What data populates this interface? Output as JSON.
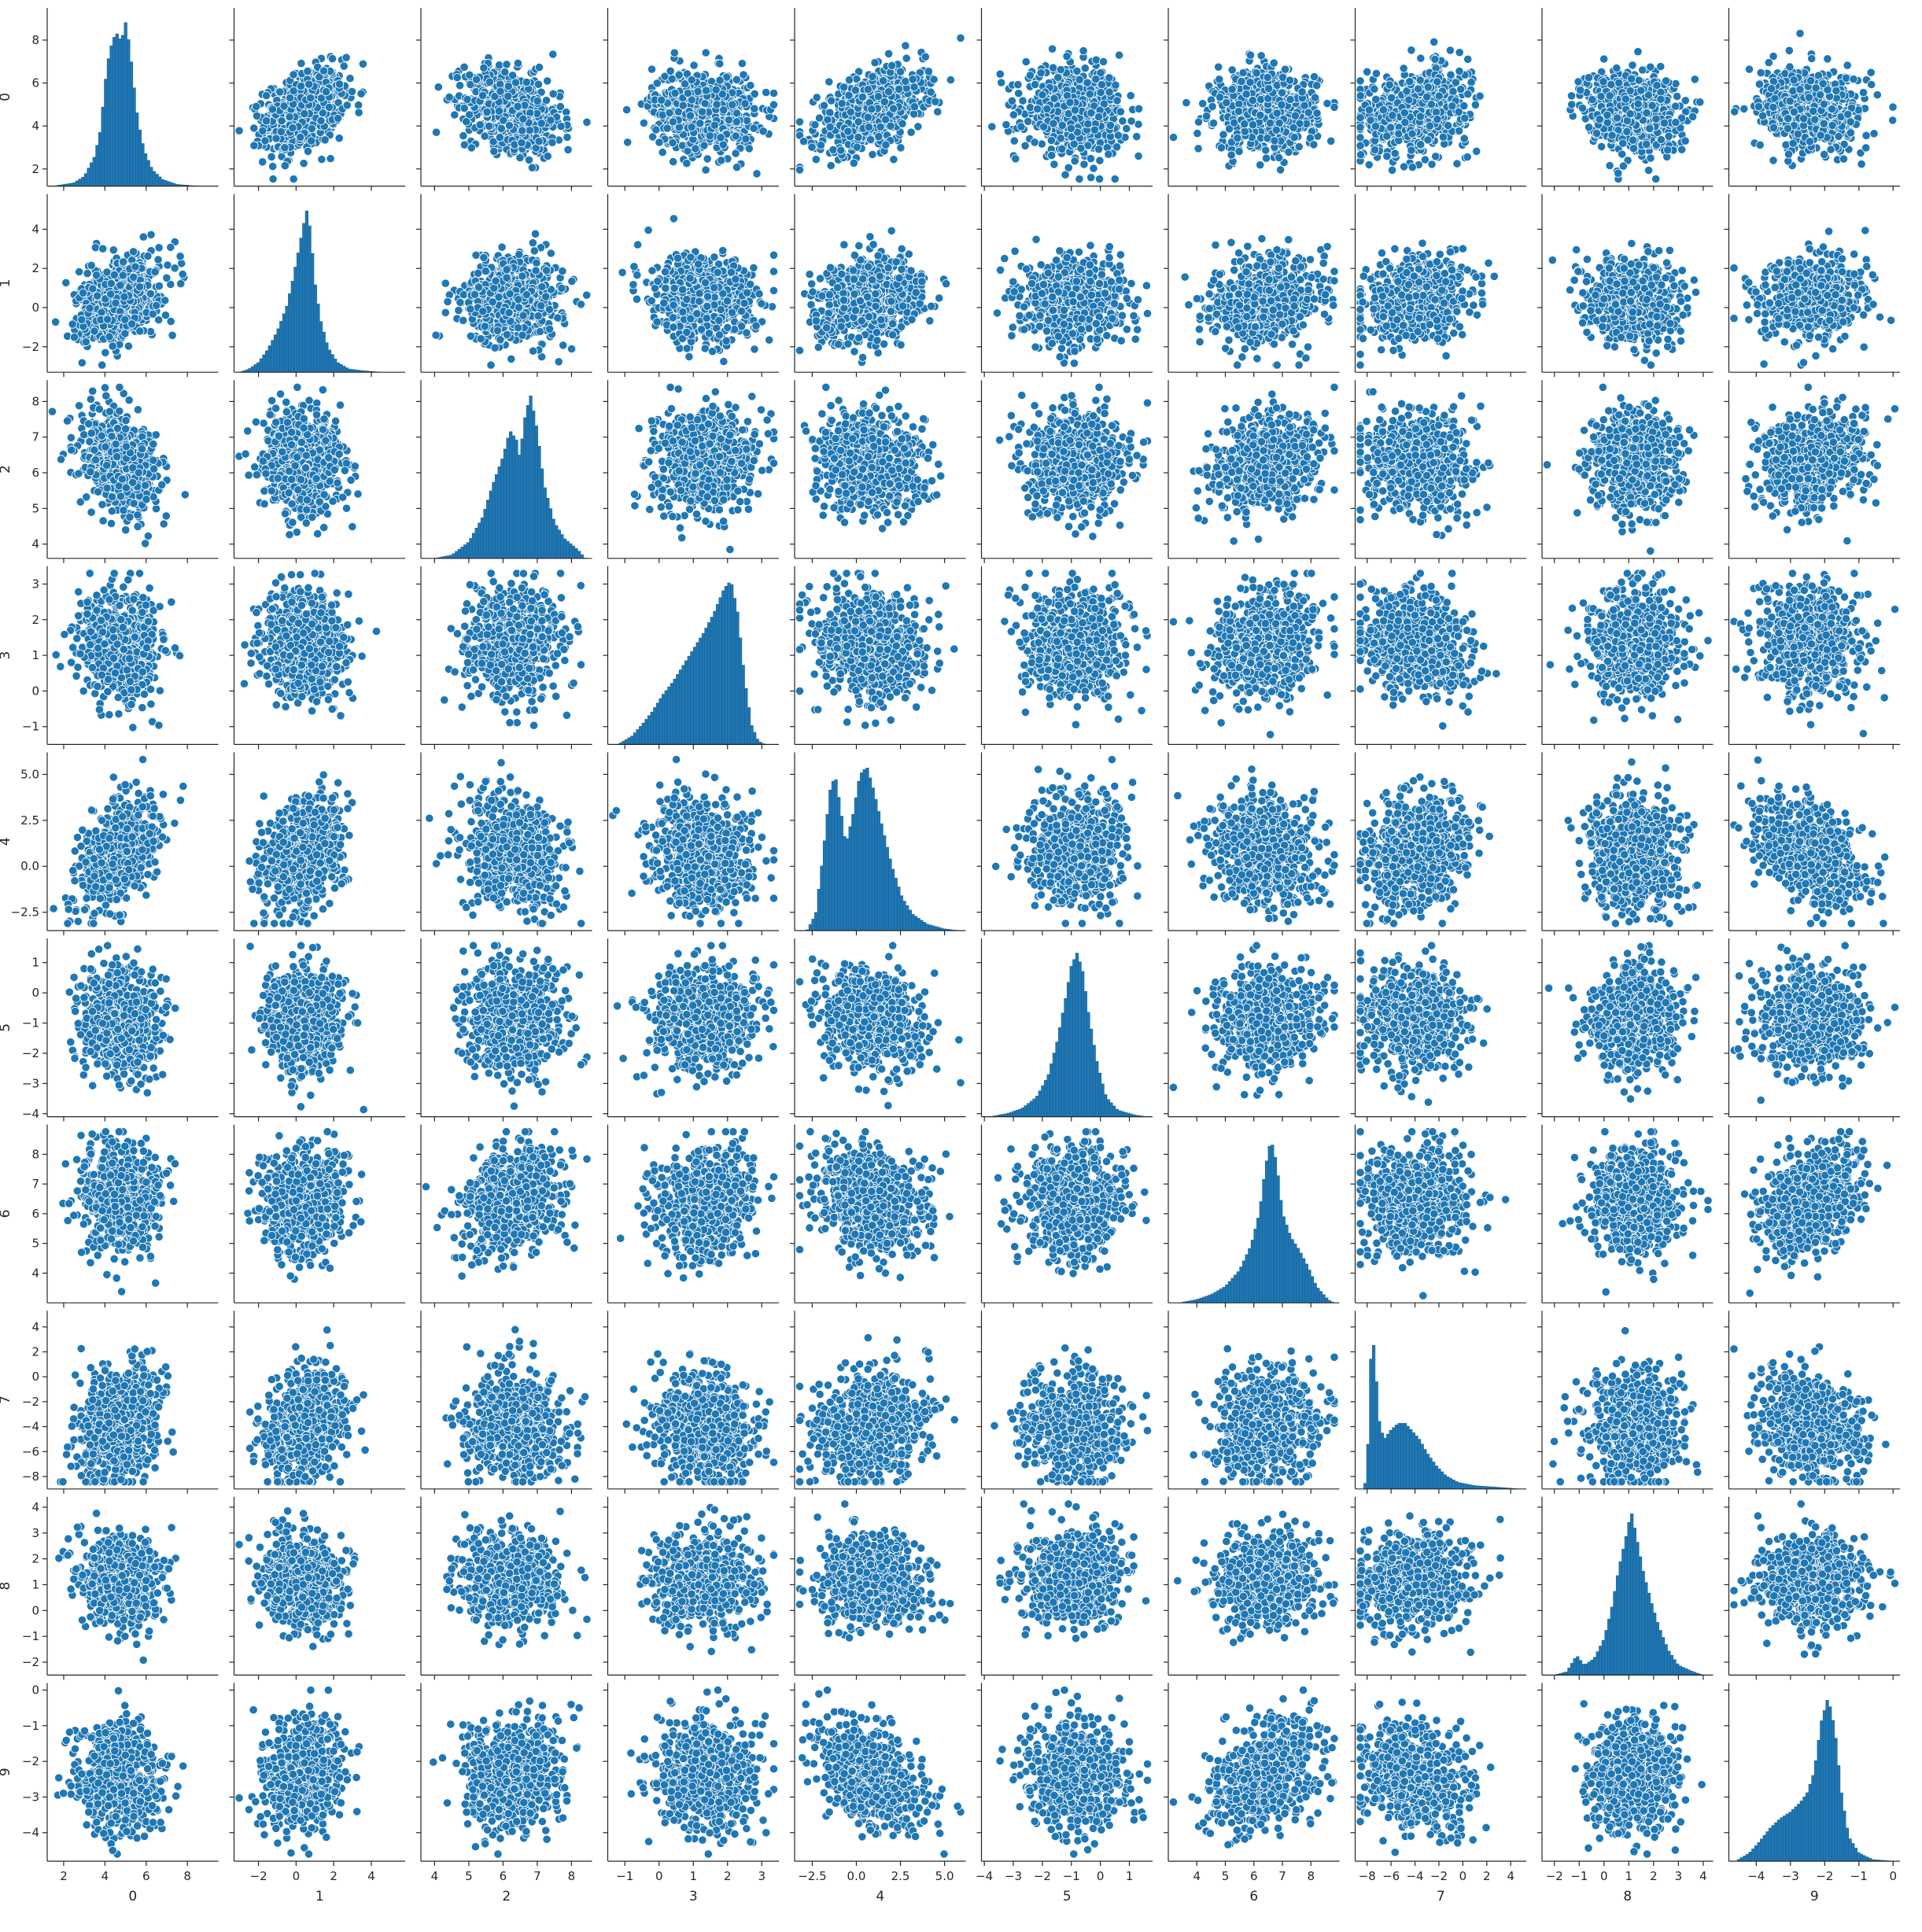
{
  "colors": {
    "marker_fill": "#1f77b4",
    "marker_edge": "#ffffff",
    "hist_fill": "#1f77b4",
    "hist_edge": "#1a5f8f",
    "axis": "#262626"
  },
  "chart_data": {
    "type": "scatter",
    "subtype": "pairplot",
    "title": "",
    "variables": [
      {
        "name": "0",
        "lim": [
          1.2,
          9.5
        ],
        "ticks": [
          {
            "v": 2,
            "label": "2"
          },
          {
            "v": 4,
            "label": "4"
          },
          {
            "v": 6,
            "label": "6"
          },
          {
            "v": 8,
            "label": "8"
          }
        ],
        "mean": 4.7,
        "sd": 0.95
      },
      {
        "name": "1",
        "lim": [
          -3.3,
          5.8
        ],
        "ticks": [
          {
            "v": -2,
            "label": "−2"
          },
          {
            "v": 0,
            "label": "0"
          },
          {
            "v": 2,
            "label": "2"
          },
          {
            "v": 4,
            "label": "4"
          }
        ],
        "mean": 0.4,
        "sd": 1.05
      },
      {
        "name": "2",
        "lim": [
          3.6,
          8.6
        ],
        "ticks": [
          {
            "v": 4,
            "label": "4"
          },
          {
            "v": 5,
            "label": "5"
          },
          {
            "v": 6,
            "label": "6"
          },
          {
            "v": 7,
            "label": "7"
          },
          {
            "v": 8,
            "label": "8"
          }
        ],
        "mean": 6.3,
        "sd": 0.7
      },
      {
        "name": "3",
        "lim": [
          -1.5,
          3.5
        ],
        "ticks": [
          {
            "v": -1,
            "label": "−1"
          },
          {
            "v": 0,
            "label": "0"
          },
          {
            "v": 1,
            "label": "1"
          },
          {
            "v": 2,
            "label": "2"
          },
          {
            "v": 3,
            "label": "3"
          }
        ],
        "mean": 1.3,
        "sd": 0.75
      },
      {
        "name": "4",
        "lim": [
          -3.5,
          6.2
        ],
        "ticks": [
          {
            "v": -2.5,
            "label": "−2.5"
          },
          {
            "v": 0.0,
            "label": "0.0"
          },
          {
            "v": 2.5,
            "label": "2.5"
          },
          {
            "v": 5.0,
            "label": "5.0"
          }
        ],
        "mean": 0.8,
        "sd": 1.5
      },
      {
        "name": "5",
        "lim": [
          -4.1,
          1.8
        ],
        "ticks": [
          {
            "v": -4,
            "label": "−4"
          },
          {
            "v": -3,
            "label": "−3"
          },
          {
            "v": -2,
            "label": "−2"
          },
          {
            "v": -1,
            "label": "−1"
          },
          {
            "v": 0,
            "label": "0"
          },
          {
            "v": 1,
            "label": "1"
          }
        ],
        "mean": -0.9,
        "sd": 0.85
      },
      {
        "name": "6",
        "lim": [
          3.0,
          9.0
        ],
        "ticks": [
          {
            "v": 4,
            "label": "4"
          },
          {
            "v": 5,
            "label": "5"
          },
          {
            "v": 6,
            "label": "6"
          },
          {
            "v": 7,
            "label": "7"
          },
          {
            "v": 8,
            "label": "8"
          }
        ],
        "mean": 6.4,
        "sd": 0.9
      },
      {
        "name": "7",
        "lim": [
          -9.0,
          5.3
        ],
        "ticks": [
          {
            "v": -8,
            "label": "−8"
          },
          {
            "v": -6,
            "label": "−6"
          },
          {
            "v": -4,
            "label": "−4"
          },
          {
            "v": -2,
            "label": "−2"
          },
          {
            "v": 0,
            "label": "0"
          },
          {
            "v": 2,
            "label": "2"
          },
          {
            "v": 4,
            "label": "4"
          }
        ],
        "mean": -4.0,
        "sd": 2.2
      },
      {
        "name": "8",
        "lim": [
          -2.5,
          4.4
        ],
        "ticks": [
          {
            "v": -2,
            "label": "−2"
          },
          {
            "v": -1,
            "label": "−1"
          },
          {
            "v": 0,
            "label": "0"
          },
          {
            "v": 1,
            "label": "1"
          },
          {
            "v": 2,
            "label": "2"
          },
          {
            "v": 3,
            "label": "3"
          },
          {
            "v": 4,
            "label": "4"
          }
        ],
        "mean": 1.2,
        "sd": 0.9
      },
      {
        "name": "9",
        "lim": [
          -4.8,
          0.2
        ],
        "ticks": [
          {
            "v": -4,
            "label": "−4"
          },
          {
            "v": -3,
            "label": "−3"
          },
          {
            "v": -2,
            "label": "−2"
          },
          {
            "v": -1,
            "label": "−1"
          },
          {
            "v": 0,
            "label": "0"
          }
        ],
        "mean": -2.4,
        "sd": 0.75
      }
    ],
    "extra_tick_labels": {
      "0": [
        {
          "v": 2,
          "label": "2"
        },
        {
          "v": 4,
          "label": "4"
        },
        {
          "v": 6,
          "label": "6"
        },
        {
          "v": 8,
          "label": "8"
        }
      ]
    },
    "correlations": [
      [
        1,
        0.35,
        -0.3,
        -0.1,
        0.45,
        -0.05,
        -0.05,
        0.2,
        -0.1,
        -0.1
      ],
      [
        0.35,
        1,
        0.05,
        -0.1,
        0.2,
        0.0,
        0.1,
        0.25,
        -0.15,
        0.15
      ],
      [
        -0.3,
        0.05,
        1,
        0.1,
        -0.15,
        0.0,
        0.25,
        -0.1,
        -0.05,
        0.1
      ],
      [
        -0.1,
        -0.1,
        0.1,
        1,
        -0.1,
        0.0,
        0.2,
        -0.1,
        -0.05,
        -0.05
      ],
      [
        0.45,
        0.2,
        -0.15,
        -0.1,
        1,
        -0.05,
        -0.2,
        0.2,
        -0.05,
        -0.45
      ],
      [
        -0.05,
        0.0,
        0.0,
        0.0,
        -0.05,
        1,
        0.05,
        -0.05,
        0.05,
        0.0
      ],
      [
        -0.05,
        0.1,
        0.25,
        0.2,
        -0.2,
        0.05,
        1,
        0.05,
        0.05,
        0.35
      ],
      [
        0.2,
        0.25,
        -0.1,
        -0.1,
        0.2,
        -0.05,
        0.05,
        1,
        0.05,
        -0.2
      ],
      [
        -0.1,
        -0.15,
        -0.05,
        -0.05,
        -0.05,
        0.05,
        0.05,
        0.05,
        1,
        0.05
      ],
      [
        -0.1,
        0.15,
        0.1,
        -0.05,
        -0.45,
        0.0,
        0.35,
        -0.2,
        0.05,
        1
      ]
    ],
    "diagonal_histograms": [
      {
        "variable": "0",
        "bins": [
          [
            1.5,
            0.0
          ],
          [
            2.0,
            0.01
          ],
          [
            2.5,
            0.02
          ],
          [
            3.0,
            0.06
          ],
          [
            3.5,
            0.18
          ],
          [
            3.8,
            0.35
          ],
          [
            4.0,
            0.62
          ],
          [
            4.2,
            0.8
          ],
          [
            4.4,
            0.9
          ],
          [
            4.6,
            0.93
          ],
          [
            4.8,
            0.88
          ],
          [
            5.0,
            1.0
          ],
          [
            5.2,
            0.85
          ],
          [
            5.4,
            0.62
          ],
          [
            5.6,
            0.4
          ],
          [
            5.9,
            0.22
          ],
          [
            6.3,
            0.1
          ],
          [
            6.8,
            0.04
          ],
          [
            7.5,
            0.01
          ],
          [
            8.5,
            0.0
          ]
        ]
      },
      {
        "variable": "1",
        "bins": [
          [
            -3.0,
            0.0
          ],
          [
            -2.5,
            0.02
          ],
          [
            -2.0,
            0.06
          ],
          [
            -1.5,
            0.14
          ],
          [
            -1.0,
            0.25
          ],
          [
            -0.5,
            0.4
          ],
          [
            -0.2,
            0.55
          ],
          [
            0.1,
            0.72
          ],
          [
            0.4,
            0.9
          ],
          [
            0.6,
            1.0
          ],
          [
            0.8,
            0.82
          ],
          [
            1.0,
            0.55
          ],
          [
            1.3,
            0.32
          ],
          [
            1.7,
            0.15
          ],
          [
            2.2,
            0.06
          ],
          [
            2.8,
            0.02
          ],
          [
            3.5,
            0.01
          ],
          [
            4.5,
            0.0
          ]
        ]
      },
      {
        "variable": "2",
        "bins": [
          [
            4.0,
            0.0
          ],
          [
            4.5,
            0.02
          ],
          [
            5.0,
            0.1
          ],
          [
            5.4,
            0.25
          ],
          [
            5.7,
            0.45
          ],
          [
            6.0,
            0.62
          ],
          [
            6.2,
            0.78
          ],
          [
            6.4,
            0.72
          ],
          [
            6.5,
            0.6
          ],
          [
            6.6,
            0.82
          ],
          [
            6.8,
            1.0
          ],
          [
            7.0,
            0.78
          ],
          [
            7.2,
            0.45
          ],
          [
            7.5,
            0.22
          ],
          [
            7.8,
            0.12
          ],
          [
            8.2,
            0.05
          ],
          [
            8.4,
            0.0
          ]
        ]
      },
      {
        "variable": "3",
        "bins": [
          [
            -1.2,
            0.0
          ],
          [
            -0.8,
            0.05
          ],
          [
            -0.5,
            0.12
          ],
          [
            -0.2,
            0.2
          ],
          [
            0.1,
            0.3
          ],
          [
            0.4,
            0.38
          ],
          [
            0.7,
            0.48
          ],
          [
            1.0,
            0.58
          ],
          [
            1.3,
            0.68
          ],
          [
            1.6,
            0.8
          ],
          [
            1.9,
            0.95
          ],
          [
            2.1,
            1.0
          ],
          [
            2.3,
            0.8
          ],
          [
            2.5,
            0.4
          ],
          [
            2.7,
            0.12
          ],
          [
            2.9,
            0.02
          ],
          [
            3.1,
            0.0
          ]
        ]
      },
      {
        "variable": "4",
        "bins": [
          [
            -2.8,
            0.0
          ],
          [
            -2.3,
            0.1
          ],
          [
            -1.9,
            0.45
          ],
          [
            -1.5,
            0.85
          ],
          [
            -1.2,
            0.95
          ],
          [
            -0.9,
            0.75
          ],
          [
            -0.6,
            0.52
          ],
          [
            -0.2,
            0.7
          ],
          [
            0.2,
            0.95
          ],
          [
            0.6,
            1.0
          ],
          [
            1.0,
            0.85
          ],
          [
            1.5,
            0.62
          ],
          [
            2.0,
            0.4
          ],
          [
            2.6,
            0.2
          ],
          [
            3.2,
            0.1
          ],
          [
            4.0,
            0.04
          ],
          [
            5.0,
            0.01
          ],
          [
            5.8,
            0.0
          ]
        ]
      },
      {
        "variable": "5",
        "bins": [
          [
            -3.8,
            0.0
          ],
          [
            -3.2,
            0.02
          ],
          [
            -2.7,
            0.05
          ],
          [
            -2.2,
            0.12
          ],
          [
            -1.8,
            0.25
          ],
          [
            -1.5,
            0.45
          ],
          [
            -1.2,
            0.72
          ],
          [
            -1.0,
            0.92
          ],
          [
            -0.8,
            1.0
          ],
          [
            -0.6,
            0.88
          ],
          [
            -0.4,
            0.62
          ],
          [
            -0.1,
            0.32
          ],
          [
            0.2,
            0.12
          ],
          [
            0.6,
            0.04
          ],
          [
            1.2,
            0.01
          ],
          [
            1.6,
            0.0
          ]
        ]
      },
      {
        "variable": "6",
        "bins": [
          [
            3.4,
            0.0
          ],
          [
            4.0,
            0.02
          ],
          [
            4.5,
            0.05
          ],
          [
            5.0,
            0.1
          ],
          [
            5.5,
            0.2
          ],
          [
            5.9,
            0.35
          ],
          [
            6.2,
            0.55
          ],
          [
            6.4,
            0.82
          ],
          [
            6.6,
            1.0
          ],
          [
            6.8,
            0.85
          ],
          [
            7.0,
            0.55
          ],
          [
            7.3,
            0.4
          ],
          [
            7.6,
            0.32
          ],
          [
            7.9,
            0.22
          ],
          [
            8.2,
            0.1
          ],
          [
            8.6,
            0.02
          ],
          [
            8.8,
            0.0
          ]
        ]
      },
      {
        "variable": "7",
        "bins": [
          [
            -8.2,
            0.0
          ],
          [
            -7.9,
            0.3
          ],
          [
            -7.6,
            1.0
          ],
          [
            -7.3,
            0.75
          ],
          [
            -7.0,
            0.42
          ],
          [
            -6.6,
            0.3
          ],
          [
            -6.0,
            0.36
          ],
          [
            -5.4,
            0.4
          ],
          [
            -4.8,
            0.4
          ],
          [
            -4.2,
            0.35
          ],
          [
            -3.6,
            0.3
          ],
          [
            -3.0,
            0.22
          ],
          [
            -2.2,
            0.14
          ],
          [
            -1.4,
            0.08
          ],
          [
            -0.4,
            0.04
          ],
          [
            1.0,
            0.02
          ],
          [
            3.0,
            0.01
          ],
          [
            4.8,
            0.0
          ]
        ]
      },
      {
        "variable": "8",
        "bins": [
          [
            -2.0,
            0.0
          ],
          [
            -1.5,
            0.02
          ],
          [
            -1.1,
            0.12
          ],
          [
            -0.8,
            0.06
          ],
          [
            -0.4,
            0.1
          ],
          [
            0.0,
            0.22
          ],
          [
            0.3,
            0.4
          ],
          [
            0.6,
            0.65
          ],
          [
            0.9,
            0.85
          ],
          [
            1.1,
            1.0
          ],
          [
            1.3,
            0.85
          ],
          [
            1.6,
            0.62
          ],
          [
            1.9,
            0.45
          ],
          [
            2.2,
            0.3
          ],
          [
            2.6,
            0.15
          ],
          [
            3.0,
            0.06
          ],
          [
            3.6,
            0.02
          ],
          [
            4.0,
            0.0
          ]
        ]
      },
      {
        "variable": "9",
        "bins": [
          [
            -4.6,
            0.0
          ],
          [
            -4.2,
            0.05
          ],
          [
            -3.9,
            0.12
          ],
          [
            -3.6,
            0.2
          ],
          [
            -3.3,
            0.26
          ],
          [
            -3.0,
            0.3
          ],
          [
            -2.7,
            0.36
          ],
          [
            -2.5,
            0.42
          ],
          [
            -2.3,
            0.55
          ],
          [
            -2.1,
            0.85
          ],
          [
            -1.9,
            1.0
          ],
          [
            -1.7,
            0.8
          ],
          [
            -1.5,
            0.4
          ],
          [
            -1.3,
            0.15
          ],
          [
            -1.0,
            0.05
          ],
          [
            -0.6,
            0.01
          ],
          [
            0.0,
            0.0
          ]
        ]
      }
    ],
    "points_per_panel_rendered": 700
  }
}
